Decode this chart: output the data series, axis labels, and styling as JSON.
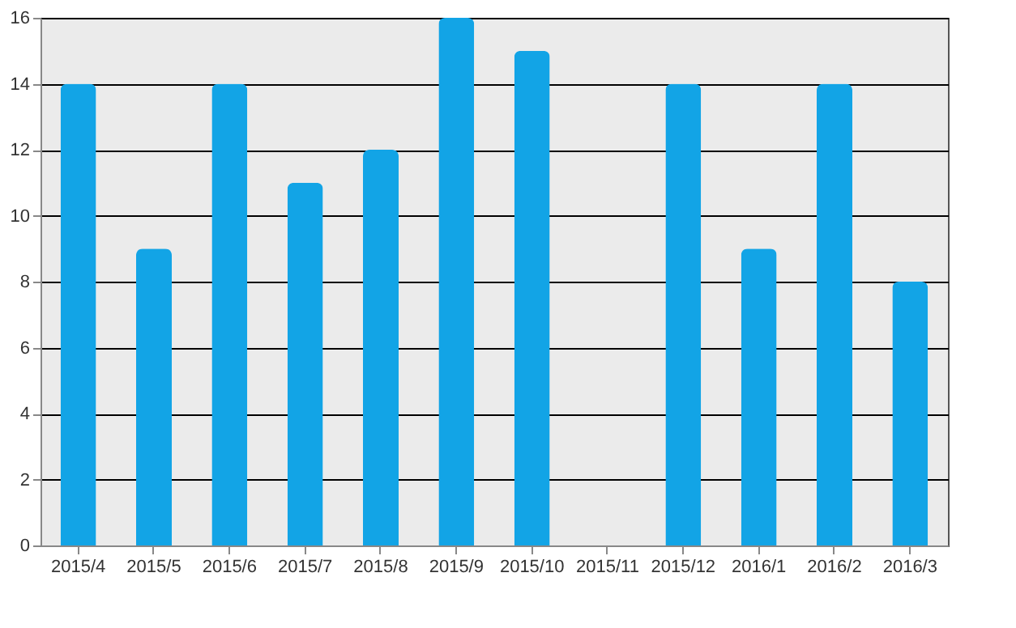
{
  "chart_data": {
    "type": "bar",
    "categories": [
      "2015/4",
      "2015/5",
      "2015/6",
      "2015/7",
      "2015/8",
      "2015/9",
      "2015/10",
      "2015/11",
      "2015/12",
      "2016/1",
      "2016/2",
      "2016/3"
    ],
    "values": [
      14,
      9,
      14,
      11,
      12,
      16,
      15,
      0,
      14,
      9,
      14,
      8
    ],
    "color": "#12a4e6",
    "ylim": [
      0,
      16
    ],
    "yticks": [
      0,
      2,
      4,
      6,
      8,
      10,
      12,
      14,
      16
    ],
    "grid": "y"
  }
}
